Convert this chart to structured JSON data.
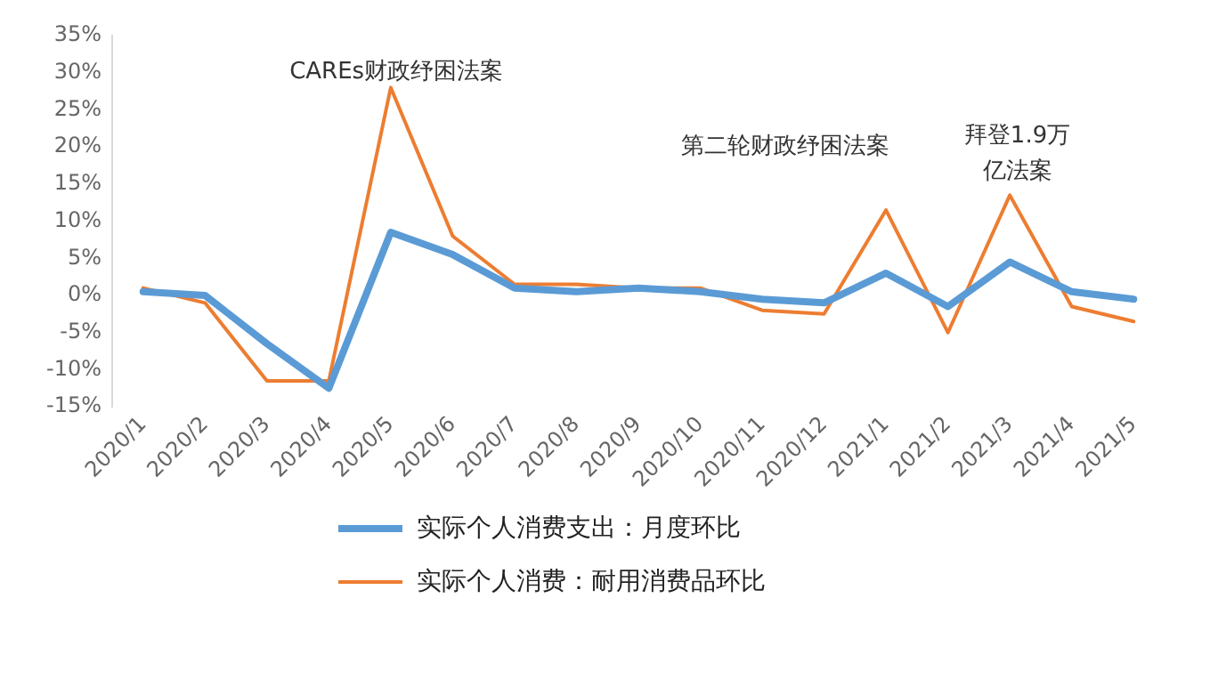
{
  "chart_data": {
    "type": "line",
    "categories": [
      "2020/1",
      "2020/2",
      "2020/3",
      "2020/4",
      "2020/5",
      "2020/6",
      "2020/7",
      "2020/8",
      "2020/9",
      "2020/10",
      "2020/11",
      "2020/12",
      "2021/1",
      "2021/2",
      "2021/3",
      "2021/4",
      "2021/5"
    ],
    "series": [
      {
        "name": "实际个人消费支出：月度环比",
        "color": "#5b9bd5",
        "values": [
          0.5,
          0,
          -6.5,
          -12.5,
          8.5,
          5.5,
          1,
          0.5,
          1,
          0.5,
          -0.5,
          -1,
          3,
          -1.5,
          4.5,
          0.5,
          -0.5
        ]
      },
      {
        "name": "实际个人消费：耐用消费品环比",
        "color": "#ed7d31",
        "values": [
          1,
          -1,
          -11.5,
          -11.5,
          28,
          8,
          1.5,
          1.5,
          1,
          1,
          -2,
          -2.5,
          11.5,
          -5,
          13.5,
          -1.5,
          -3.5
        ]
      }
    ],
    "ylim": [
      -15,
      35
    ],
    "yticks": [
      {
        "value": -15,
        "label": "-15%"
      },
      {
        "value": -10,
        "label": "-10%"
      },
      {
        "value": -5,
        "label": "-5%"
      },
      {
        "value": 0,
        "label": "0%"
      },
      {
        "value": 5,
        "label": "5%"
      },
      {
        "value": 10,
        "label": "10%"
      },
      {
        "value": 15,
        "label": "15%"
      },
      {
        "value": 20,
        "label": "20%"
      },
      {
        "value": 25,
        "label": "25%"
      },
      {
        "value": 30,
        "label": "30%"
      },
      {
        "value": 35,
        "label": "35%"
      }
    ],
    "annotations": [
      "CAREs财政纾困法案",
      "第二轮财政纾困法案",
      "拜登1.9万亿法案"
    ],
    "grid": false,
    "legend": "bottom",
    "marker": "none",
    "line_style": "solid"
  }
}
